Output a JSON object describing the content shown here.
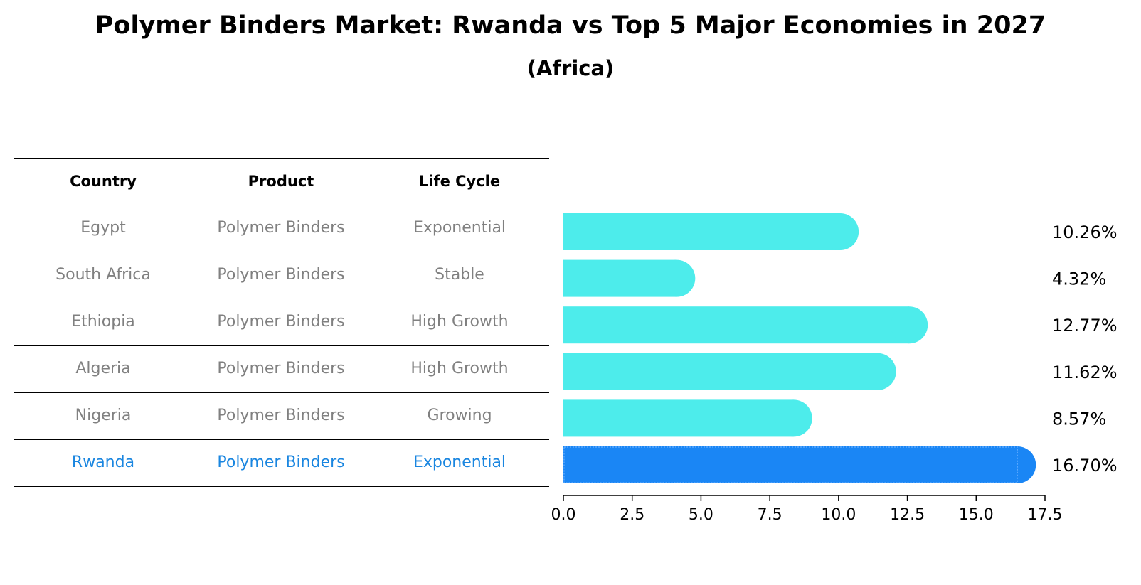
{
  "title": "Polymer Binders Market: Rwanda vs Top 5 Major Economies in 2027",
  "subtitle": "(Africa)",
  "table": {
    "headers": [
      "Country",
      "Product",
      "Life Cycle"
    ],
    "rows": [
      {
        "country": "Egypt",
        "product": "Polymer Binders",
        "life_cycle": "Exponential"
      },
      {
        "country": "South Africa",
        "product": "Polymer Binders",
        "life_cycle": "Stable"
      },
      {
        "country": "Ethiopia",
        "product": "Polymer Binders",
        "life_cycle": "High Growth"
      },
      {
        "country": "Algeria",
        "product": "Polymer Binders",
        "life_cycle": "High Growth"
      },
      {
        "country": "Nigeria",
        "product": "Polymer Binders",
        "life_cycle": "Growing"
      },
      {
        "country": "Rwanda",
        "product": "Polymer Binders",
        "life_cycle": "Exponential"
      }
    ]
  },
  "colors": {
    "bar": "#4deceb",
    "highlight_bar": "#1a86f5",
    "highlight_text": "#1a86e0",
    "muted_text": "#808080"
  },
  "chart_data": {
    "type": "bar",
    "orientation": "horizontal",
    "categories": [
      "Egypt",
      "South Africa",
      "Ethiopia",
      "Algeria",
      "Nigeria",
      "Rwanda"
    ],
    "values": [
      10.26,
      4.32,
      12.77,
      11.62,
      8.57,
      16.7
    ],
    "value_labels": [
      "10.26%",
      "4.32%",
      "12.77%",
      "11.62%",
      "8.57%",
      "16.70%"
    ],
    "highlight": "Rwanda",
    "xlim": [
      0,
      17.5
    ],
    "xticks": [
      "0.0",
      "2.5",
      "5.0",
      "7.5",
      "10.0",
      "12.5",
      "15.0",
      "17.5"
    ],
    "xlabel": "",
    "ylabel": "",
    "grid": false,
    "legend": "none"
  }
}
